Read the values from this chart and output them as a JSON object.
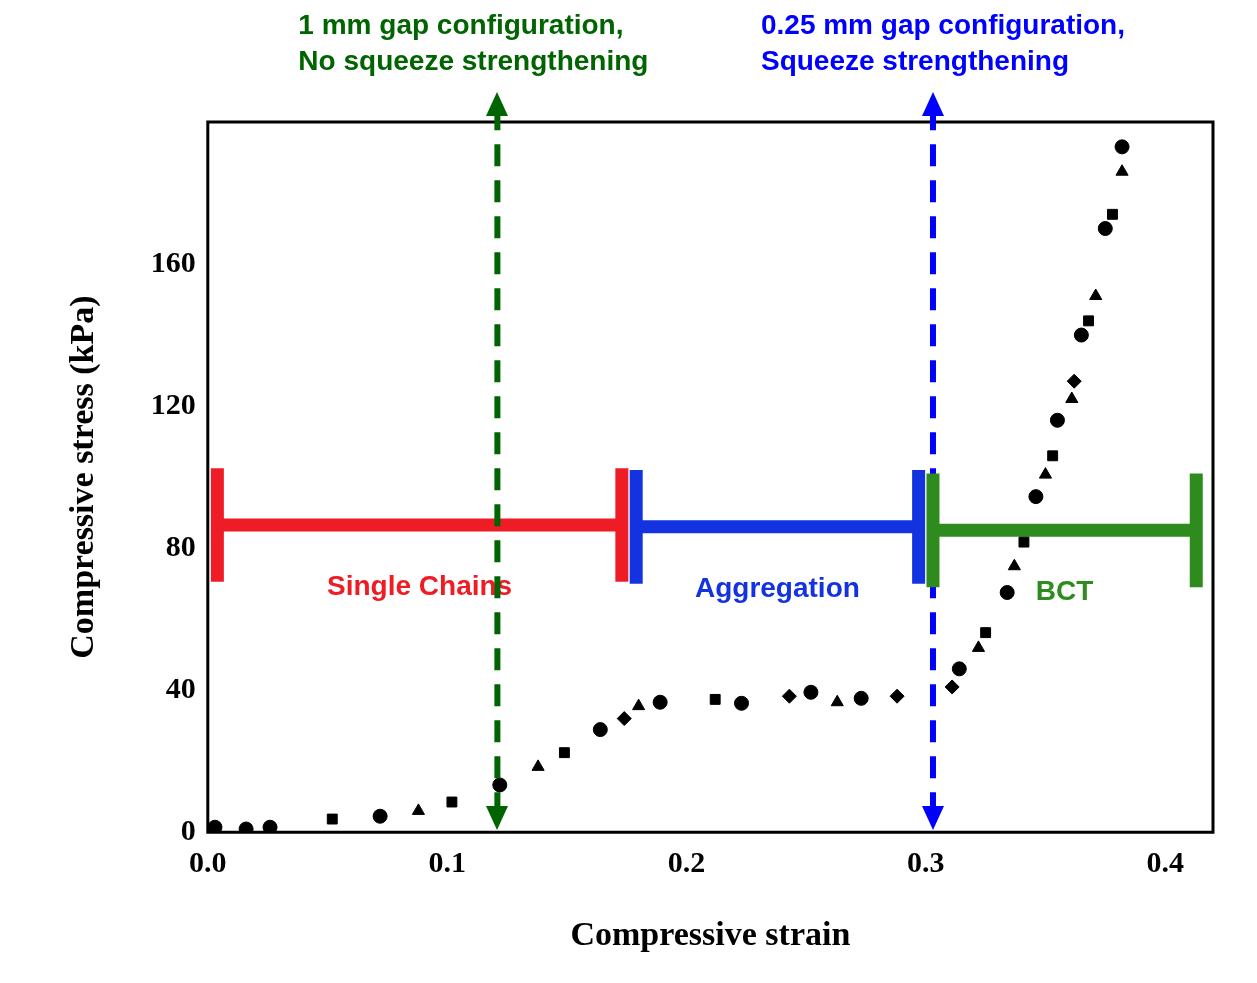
{
  "chart_data": {
    "type": "scatter",
    "xlabel": "Compressive strain",
    "ylabel": "Compressive stress (kPa)",
    "xlim": [
      0,
      0.42
    ],
    "ylim": [
      0,
      200
    ],
    "xticks": [
      {
        "value": 0,
        "label": "0.0"
      },
      0.1,
      0.2,
      0.3,
      0.4
    ],
    "yticks": [
      0,
      40,
      80,
      120,
      160
    ],
    "grid": false,
    "legend": false,
    "series": [
      {
        "marker": "circle",
        "color": "#000000",
        "x": [
          0.003,
          0.016,
          0.026,
          0.072,
          0.122,
          0.164,
          0.189,
          0.223,
          0.252,
          0.273,
          0.314,
          0.334,
          0.346,
          0.355,
          0.365,
          0.375,
          0.382
        ],
        "values": [
          1.4,
          0.9,
          1.4,
          4.5,
          13.3,
          28.9,
          36.6,
          36.3,
          39.4,
          37.7,
          46,
          67.5,
          94.5,
          116,
          140,
          170,
          193
        ]
      },
      {
        "marker": "square",
        "color": "#000000",
        "x": [
          0.052,
          0.102,
          0.149,
          0.212,
          0.325,
          0.341,
          0.353,
          0.368,
          0.378
        ],
        "values": [
          3.7,
          8.5,
          22.4,
          37.4,
          56.2,
          81.7,
          106,
          144,
          174
        ]
      },
      {
        "marker": "triangle",
        "color": "#000000",
        "x": [
          0.088,
          0.138,
          0.18,
          0.263,
          0.322,
          0.337,
          0.35,
          0.361,
          0.371,
          0.382
        ],
        "values": [
          6,
          18.4,
          35.5,
          36.6,
          51.9,
          74.9,
          100.7,
          122,
          151,
          186
        ]
      },
      {
        "marker": "diamond",
        "color": "#000000",
        "x": [
          0.174,
          0.243,
          0.288,
          0.311,
          0.362
        ],
        "values": [
          32,
          38.3,
          38.3,
          40.9,
          127
        ]
      },
      {
        "type": "line",
        "name": "Single Chains",
        "color": "#ee1c25",
        "x": [
          0.004,
          0.173
        ],
        "values": [
          86.5,
          86.5
        ],
        "errors": [
          16,
          16
        ]
      },
      {
        "type": "line",
        "name": "Aggregation",
        "color": "#1433e0",
        "x": [
          0.179,
          0.297
        ],
        "values": [
          86,
          86
        ],
        "errors": [
          16,
          16
        ]
      },
      {
        "type": "line",
        "name": "BCT",
        "color": "#2e8b1e",
        "x": [
          0.303,
          0.413
        ],
        "values": [
          85,
          85
        ],
        "errors": [
          16,
          16
        ]
      }
    ],
    "ref_lines": [
      {
        "axis": "x",
        "value": 0.121,
        "label": "1 mm gap configuration,\nNo squeeze strengthening",
        "color": "#006400",
        "line_style": "dashed"
      },
      {
        "axis": "x",
        "value": 0.303,
        "label": "0.25 mm gap configuration,\nSqueeze strengthening",
        "color": "#0000ff",
        "line_style": "dashed"
      }
    ]
  }
}
